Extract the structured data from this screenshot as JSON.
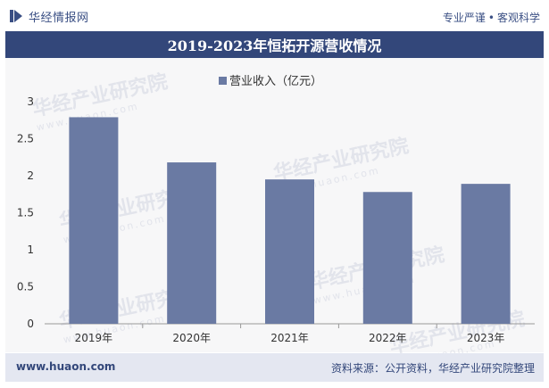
{
  "header": {
    "brand": "华经情报网",
    "slogan_left": "专业严谨",
    "slogan_sep": "•",
    "slogan_right": "客观科学"
  },
  "watermark": {
    "text": "华经产业研究院",
    "url": "www.huaon.com"
  },
  "footer": {
    "url": "www.huaon.com",
    "source": "资料来源：公开资料，华经产业研究院整理"
  },
  "colors": {
    "bar": "#6a7aa3",
    "title_bg": "#33477a",
    "footer_bg": "#e4e7f1"
  },
  "chart_data": {
    "type": "bar",
    "title": "2019-2023年恒拓开源营收情况",
    "categories": [
      "2019年",
      "2020年",
      "2021年",
      "2022年",
      "2023年"
    ],
    "series": [
      {
        "name": "营业收入（亿元）",
        "values": [
          2.79,
          2.18,
          1.95,
          1.78,
          1.89
        ]
      }
    ],
    "ylim": [
      0,
      3
    ],
    "yticks": [
      "0",
      "0.5",
      "1",
      "1.5",
      "2",
      "2.5",
      "3"
    ],
    "xlabel": "",
    "ylabel": "",
    "legend": "top-center",
    "grid": false
  }
}
